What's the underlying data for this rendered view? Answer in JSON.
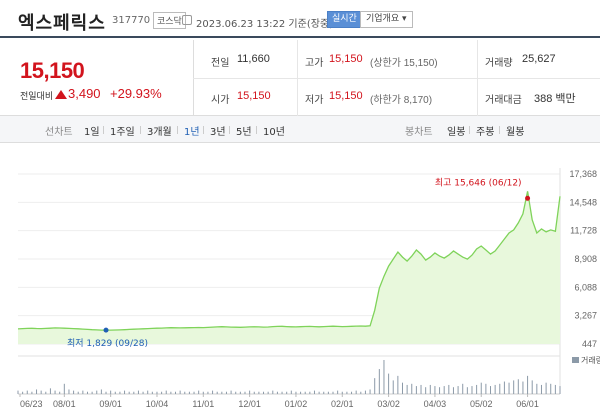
{
  "header": {
    "stock_name": "엑스페릭스",
    "stock_code": "317770",
    "market_badge": "코스닥",
    "timestamp": "2023.06.23 13:22 기준(장중)",
    "realtime_button": "실시간",
    "company_button": "기업개요 ▾"
  },
  "quote": {
    "price": "15,150",
    "change_label": "전일대비",
    "change_amount": "3,490",
    "change_percent": "+29.93%"
  },
  "stats": {
    "prev_close_label": "전일",
    "prev_close": "11,660",
    "high_label": "고가",
    "high": "15,150",
    "high_limit": "(상한가 15,150)",
    "volume_label": "거래량",
    "volume": "25,627",
    "open_label": "시가",
    "open": "15,150",
    "low_label": "저가",
    "low": "15,150",
    "low_limit": "(하한가 8,170)",
    "amount_label": "거래대금",
    "amount": "388 백만"
  },
  "tabs": {
    "line_chart_label": "선차트",
    "line_periods": [
      "1일",
      "1주일",
      "3개월",
      "1년",
      "3년",
      "5년",
      "10년"
    ],
    "active_period": "1년",
    "candle_chart_label": "봉차트",
    "candle_periods": [
      "일봉",
      "주봉",
      "월봉"
    ]
  },
  "colors": {
    "up": "#d2141d",
    "down": "#1f5fb4",
    "line": "#7fd35a",
    "area": "#e8f8dc"
  },
  "chart_data": {
    "type": "area",
    "y_ticks": [
      447,
      3267,
      6088,
      8908,
      11728,
      14548,
      17368
    ],
    "ylim": [
      447,
      17368
    ],
    "x_tick_labels": [
      "06/23",
      "08/01",
      "09/01",
      "10/04",
      "11/01",
      "12/01",
      "01/02",
      "02/01",
      "03/02",
      "04/03",
      "05/02",
      "06/01"
    ],
    "high_annotation": "최고 15,646 (06/12)",
    "low_annotation": "최저 1,829 (09/28)",
    "volume_label": "거래량",
    "series": [
      {
        "values": [
          1950,
          1980,
          2000,
          2010,
          1990,
          1980,
          2000,
          2020,
          2050,
          2040,
          2020,
          2000,
          1980,
          1960,
          1930,
          1900,
          1870,
          1850,
          1830,
          1829,
          1835,
          1845,
          1850,
          1870,
          1900,
          1920,
          1940,
          1960,
          1980,
          2000,
          2020,
          2030,
          2050,
          2070,
          2060,
          2050,
          2060,
          2070,
          2080,
          2090,
          2080,
          2100,
          2130,
          2150,
          2170,
          2150,
          2130,
          2120,
          2110,
          2130,
          2150,
          2160,
          2150,
          2130,
          2140,
          2180,
          2200,
          2210,
          2180,
          2160,
          2150,
          2170,
          2190,
          2200,
          2180,
          2160,
          2180,
          2200,
          2220,
          2200,
          2180,
          2190,
          2210,
          2230,
          2240,
          2220,
          2260,
          3800,
          6000,
          7200,
          8200,
          8900,
          9600,
          9100,
          8700,
          9200,
          9800,
          9400,
          8800,
          9100,
          9500,
          9200,
          9000,
          9300,
          9700,
          9400,
          9100,
          8900,
          9300,
          9900,
          10200,
          9800,
          9400,
          9700,
          10300,
          10900,
          11500,
          11800,
          12500,
          13400,
          15646,
          12800,
          11500,
          11900,
          11600,
          11800,
          11660,
          15150
        ]
      }
    ],
    "volume": [
      3,
      2,
      3,
      2,
      4,
      3,
      2,
      5,
      3,
      2,
      9,
      4,
      3,
      2,
      3,
      2,
      2,
      3,
      4,
      2,
      3,
      2,
      2,
      3,
      2,
      2,
      3,
      2,
      3,
      2,
      2,
      2,
      3,
      2,
      2,
      3,
      2,
      2,
      2,
      3,
      2,
      2,
      3,
      2,
      2,
      2,
      3,
      2,
      2,
      2,
      3,
      2,
      2,
      2,
      2,
      3,
      2,
      2,
      2,
      3,
      2,
      2,
      2,
      2,
      3,
      2,
      2,
      2,
      2,
      3,
      2,
      2,
      2,
      3,
      2,
      3,
      4,
      14,
      22,
      30,
      18,
      12,
      16,
      10,
      8,
      9,
      7,
      8,
      6,
      8,
      7,
      6,
      7,
      8,
      6,
      7,
      9,
      6,
      7,
      8,
      10,
      9,
      7,
      8,
      9,
      11,
      10,
      12,
      13,
      11,
      16,
      12,
      9,
      8,
      10,
      9,
      8,
      7
    ]
  }
}
